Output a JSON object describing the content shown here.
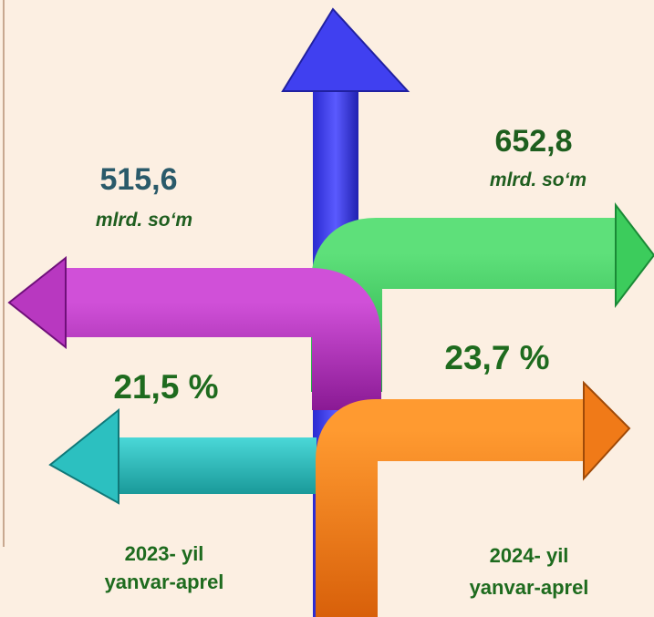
{
  "left": {
    "amount": "515,6",
    "unit": "mlrd. so‘m",
    "percent": "21,5 %",
    "period": [
      "2023- yil",
      "yanvar-aprel"
    ]
  },
  "right": {
    "amount": "652,8",
    "unit": "mlrd. so‘m",
    "percent": "23,7 %",
    "period": [
      "2024- yil",
      "yanvar-aprel"
    ]
  }
}
